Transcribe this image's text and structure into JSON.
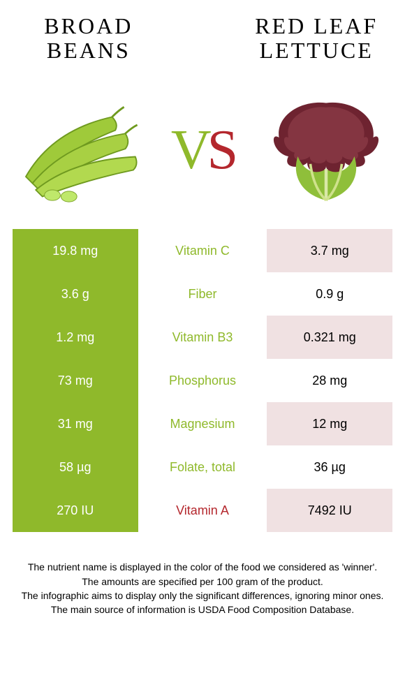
{
  "colors": {
    "left_header_bg": "#8fb92b",
    "left_value_text": "#ffffff",
    "left_nutrient_text": "#8fb92b",
    "right_header_bg": "#b4272d",
    "right_value_bg": "#f0e1e2",
    "right_value_text": "#000000",
    "right_nutrient_text": "#b4272d",
    "row_alt_white": "#ffffff"
  },
  "title_left": "Broad beans",
  "title_right": "Red Leaf Lettuce",
  "vs_v": "V",
  "vs_s": "S",
  "rows": [
    {
      "left": "19.8 mg",
      "mid": "Vitamin C",
      "right": "3.7 mg",
      "winner": "left"
    },
    {
      "left": "3.6 g",
      "mid": "Fiber",
      "right": "0.9 g",
      "winner": "left"
    },
    {
      "left": "1.2 mg",
      "mid": "Vitamin B3",
      "right": "0.321 mg",
      "winner": "left"
    },
    {
      "left": "73 mg",
      "mid": "Phosphorus",
      "right": "28 mg",
      "winner": "left"
    },
    {
      "left": "31 mg",
      "mid": "Magnesium",
      "right": "12 mg",
      "winner": "left"
    },
    {
      "left": "58 µg",
      "mid": "Folate, total",
      "right": "36 µg",
      "winner": "left"
    },
    {
      "left": "270 IU",
      "mid": "Vitamin A",
      "right": "7492 IU",
      "winner": "right"
    }
  ],
  "footnotes": [
    "The nutrient name is displayed in the color of the food we considered as 'winner'.",
    "The amounts are specified per 100 gram of the product.",
    "The infographic aims to display only the significant differences, ignoring minor ones.",
    "The main source of information is USDA Food Composition Database."
  ]
}
